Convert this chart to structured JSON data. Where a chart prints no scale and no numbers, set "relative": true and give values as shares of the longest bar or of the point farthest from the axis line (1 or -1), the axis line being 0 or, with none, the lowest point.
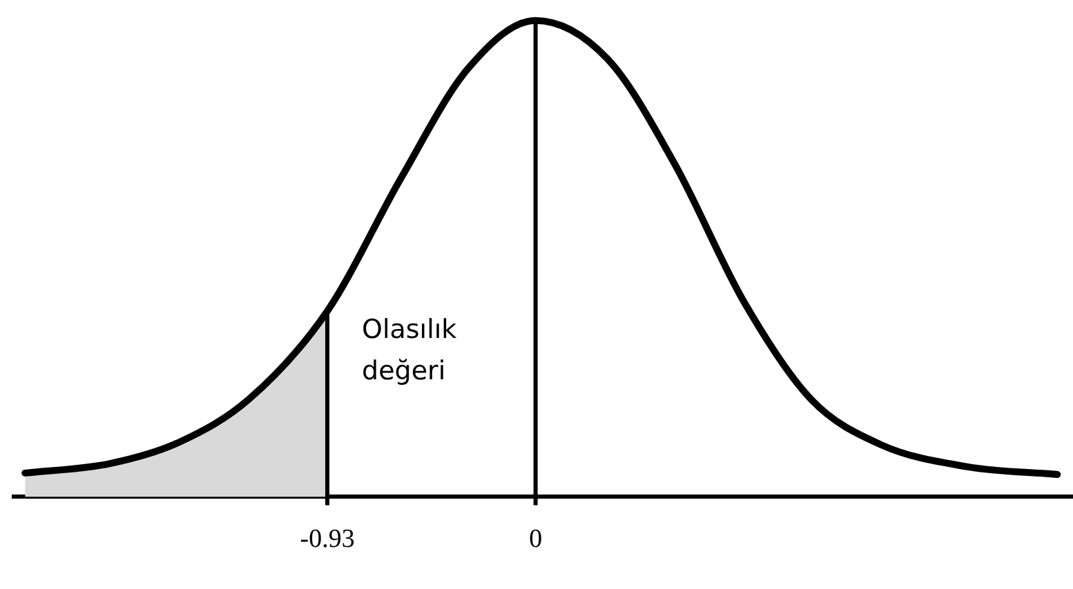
{
  "chart_data": {
    "type": "line",
    "relative": true,
    "x": [
      -2.28,
      -1.9,
      -1.59,
      -1.28,
      -0.93,
      -0.6,
      -0.3,
      0,
      0.32,
      0.62,
      0.93,
      1.23,
      1.54,
      1.93,
      2.33
    ],
    "series": [
      {
        "color": "#000000",
        "values": [
          0.05,
          0.07,
          0.115,
          0.205,
          0.39,
          0.67,
          0.9,
          1.0,
          0.92,
          0.7,
          0.41,
          0.205,
          0.11,
          0.063,
          0.047
        ]
      },
      {
        "type": "area",
        "color": "#d9d9d9",
        "x": [
          -2.28,
          -1.9,
          -1.59,
          -1.28,
          -0.93
        ],
        "values": [
          0.05,
          0.07,
          0.115,
          0.205,
          0.39
        ]
      }
    ],
    "xlim": [
      -2.33,
      2.4
    ],
    "xticks": [
      -0.93,
      0
    ],
    "ref_lines": [
      {
        "axis": "x",
        "value": -0.93,
        "color": "#000000"
      },
      {
        "axis": "x",
        "value": 0,
        "color": "#000000"
      }
    ],
    "annotations": [
      "Olasılık değeri"
    ],
    "grid": false,
    "legend": false,
    "marker": "none",
    "line_style": "solid"
  }
}
